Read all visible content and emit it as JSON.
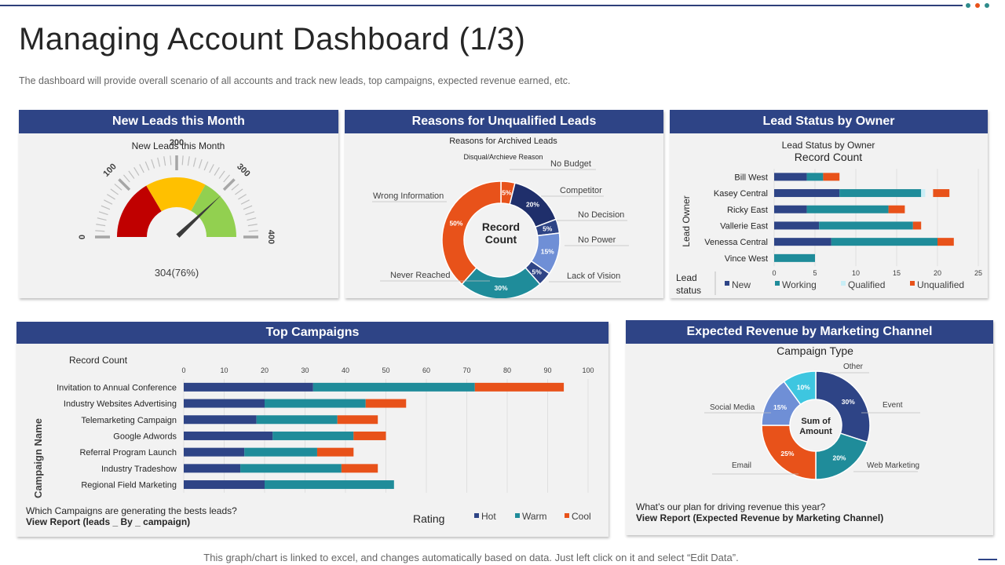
{
  "header": {
    "title": "Managing Account Dashboard (1/3)",
    "subtitle": "The dashboard will provide overall scenario of all accounts and track new leads, top campaigns, expected revenue earned, etc.",
    "dot_colors": [
      "#2e8b8b",
      "#e8521a",
      "#2e8b8b"
    ]
  },
  "colors": {
    "navy": "#2e4486",
    "teal": "#1f8c9a",
    "orange": "#e8521a",
    "lightblue": "#c9eef6",
    "red": "#c00000",
    "yellow": "#ffc000",
    "green": "#92d050"
  },
  "new_leads": {
    "header": "New Leads this Month",
    "chart_title": "New Leads this Month",
    "value_label": "304(76%)",
    "gauge_value": 304,
    "gauge_max": 400,
    "ticks": [
      "0",
      "100",
      "200",
      "300",
      "400"
    ]
  },
  "unqualified": {
    "header": "Reasons for Unqualified Leads",
    "chart_title": "Reasons for Archived Leads",
    "legend_title": "Disqual/Archieve Reason",
    "center_label_1": "Record",
    "center_label_2": "Count"
  },
  "lead_status": {
    "header": "Lead Status by Owner",
    "chart_title": "Lead Status by Owner",
    "chart_subtitle": "Record Count",
    "yaxis_label": "Lead Owner",
    "legend_title_1": "Lead",
    "legend_title_2": "status"
  },
  "campaigns": {
    "header": "Top Campaigns",
    "xaxis_title": "Record Count",
    "yaxis_label": "Campaign Name",
    "legend_title": "Rating",
    "question": "Which Campaigns are generating the bests leads?",
    "link": "View Report (leads _ By _ campaign)"
  },
  "revenue": {
    "header": "Expected Revenue by Marketing Channel",
    "chart_title": "Campaign Type",
    "center_label_1": "Sum of",
    "center_label_2": "Amount",
    "question": "What’s our plan for driving revenue this year?",
    "link": "View Report (Expected Revenue by Marketing Channel)"
  },
  "footer": "This graph/chart is linked to excel, and changes automatically based on data. Just left click on it and select “Edit Data”.",
  "chart_data": [
    {
      "type": "pie",
      "title": "Reasons for Archived Leads",
      "series": [
        {
          "name": "No Budget",
          "label": "5%",
          "value": 5,
          "color": "#e8521a"
        },
        {
          "name": "Competitor",
          "label": "20%",
          "value": 20,
          "color": "#1f2f6b"
        },
        {
          "name": "No Decision",
          "label": "5%",
          "value": 5,
          "color": "#2e4486"
        },
        {
          "name": "No Power",
          "label": "15%",
          "value": 15,
          "color": "#6f8fd6"
        },
        {
          "name": "Lack of Vision",
          "label": "5%",
          "value": 5,
          "color": "#2e4486"
        },
        {
          "name": "Never Reached",
          "label": "30%",
          "value": 30,
          "color": "#1f8c9a"
        },
        {
          "name": "Wrong Information",
          "label": "50%",
          "value": 50,
          "color": "#e8521a"
        }
      ]
    },
    {
      "type": "bar",
      "title": "Lead Status by Owner",
      "categories": [
        "Bill West",
        "Kasey Central",
        "Ricky East",
        "Vallerie East",
        "Venessa Central",
        "Vince West"
      ],
      "xlim": [
        0,
        25
      ],
      "ticks": [
        0,
        5,
        10,
        15,
        20,
        25
      ],
      "series": [
        {
          "name": "New",
          "color": "#2e4486",
          "values": [
            4,
            8,
            4,
            5.5,
            7,
            0
          ]
        },
        {
          "name": "Working",
          "color": "#1f8c9a",
          "values": [
            2,
            10,
            10,
            11.5,
            13,
            5
          ]
        },
        {
          "name": "Qualified",
          "color": "#c9eef6",
          "values": [
            0,
            0.5,
            0,
            0,
            0,
            0
          ]
        },
        {
          "name": "Unqualified",
          "color": "#e8521a",
          "values": [
            2,
            2,
            2,
            1,
            2,
            0
          ]
        }
      ]
    },
    {
      "type": "bar",
      "title": "Top Campaigns",
      "categories": [
        "Invitation to Annual Conference",
        "Industry Websites Advertising",
        "Telemarketing Campaign",
        "Google Adwords",
        "Referral Program Launch",
        "Industry Tradeshow",
        "Regional Field Marketing"
      ],
      "xlim": [
        0,
        100
      ],
      "ticks": [
        0,
        10,
        20,
        30,
        40,
        50,
        60,
        70,
        80,
        90,
        100
      ],
      "series": [
        {
          "name": "Hot",
          "color": "#2e4486",
          "values": [
            32,
            20,
            18,
            22,
            15,
            14,
            20
          ]
        },
        {
          "name": "Warm",
          "color": "#1f8c9a",
          "values": [
            40,
            25,
            20,
            20,
            18,
            25,
            32
          ]
        },
        {
          "name": "Cool",
          "color": "#e8521a",
          "values": [
            22,
            10,
            10,
            8,
            9,
            9,
            0
          ]
        }
      ]
    },
    {
      "type": "pie",
      "title": "Campaign Type",
      "series": [
        {
          "name": "Event",
          "label": "30%",
          "value": 30,
          "color": "#2e4486"
        },
        {
          "name": "Web Marketing",
          "label": "20%",
          "value": 20,
          "color": "#1f8c9a"
        },
        {
          "name": "Email",
          "label": "25%",
          "value": 25,
          "color": "#e8521a"
        },
        {
          "name": "Social Media",
          "label": "15%",
          "value": 15,
          "color": "#6f8fd6"
        },
        {
          "name": "Other",
          "label": "10%",
          "value": 10,
          "color": "#3ec6e0"
        }
      ]
    }
  ]
}
